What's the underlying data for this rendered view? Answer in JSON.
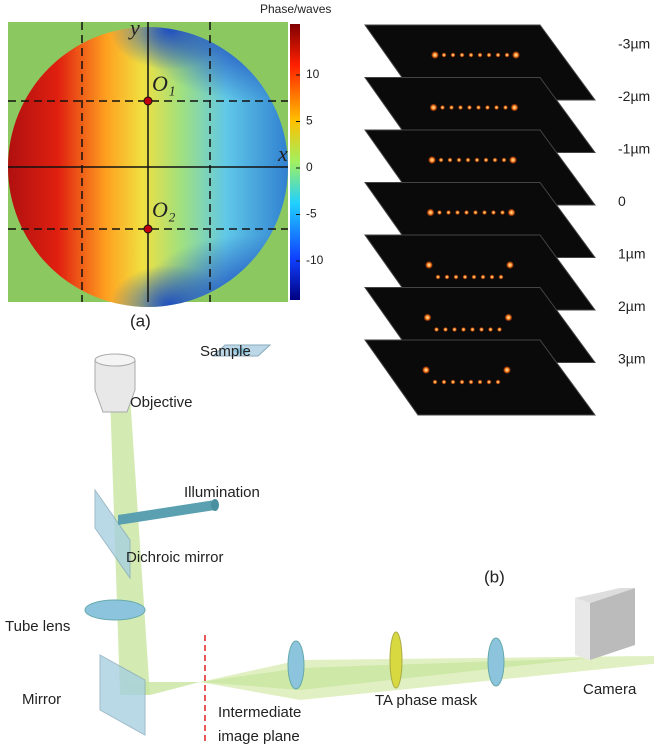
{
  "panel_a": {
    "colorbar_title": "Phase/waves",
    "colorbar_ticks": [
      "10",
      "5",
      "0",
      "-5",
      "-10"
    ],
    "axis_x": "x",
    "axis_y": "y",
    "point_1": "O₁",
    "point_2": "O₂",
    "caption": "(a)"
  },
  "panel_b": {
    "caption": "(b)",
    "planes": [
      "-3µm",
      "-2µm",
      "-1µm",
      "0",
      "1µm",
      "2µm",
      "3µm"
    ]
  },
  "setup": {
    "sample": "Sample",
    "objective": "Objective",
    "illumination": "Illumination",
    "dichroic": "Dichroic mirror",
    "tube_lens": "Tube lens",
    "mirror": "Mirror",
    "intermediate": [
      "Intermediate",
      "image plane"
    ],
    "mask": "TA phase mask",
    "camera": "Camera"
  }
}
